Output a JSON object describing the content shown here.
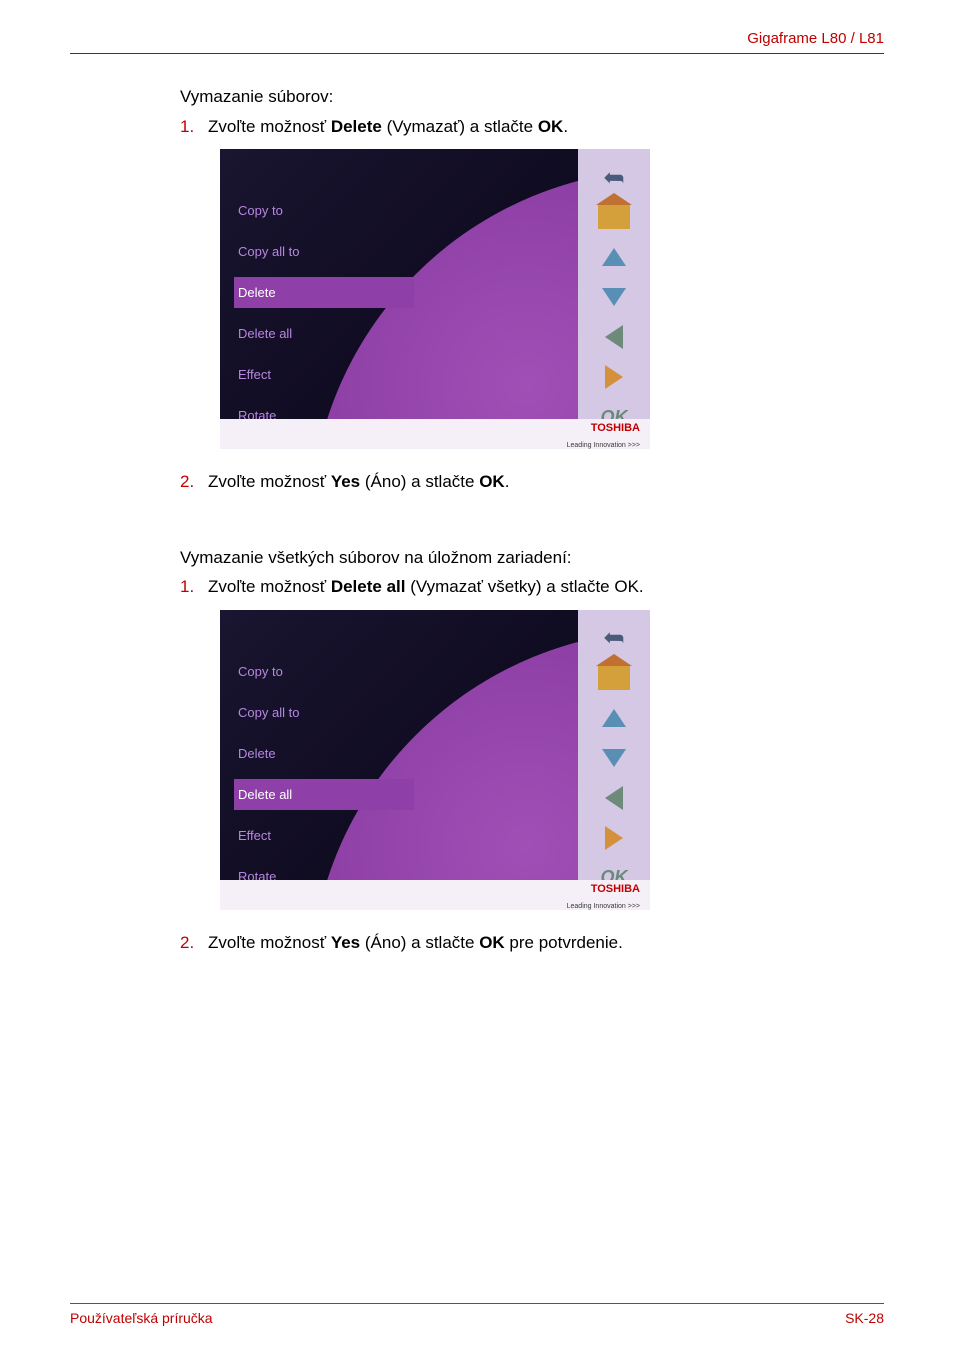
{
  "header": {
    "title": "Gigaframe L80 / L81"
  },
  "section1": {
    "heading": "Vymazanie súborov:",
    "step1_num": "1.",
    "step1_pre": "Zvoľte možnosť ",
    "step1_b1": "Delete",
    "step1_mid": " (Vymazať) a stlačte ",
    "step1_b2": "OK",
    "step1_post": ".",
    "step2_num": "2.",
    "step2_pre": "Zvoľte možnosť ",
    "step2_b1": "Yes",
    "step2_mid": " (Áno) a stlačte ",
    "step2_b2": "OK",
    "step2_post": "."
  },
  "section2": {
    "heading": "Vymazanie všetkých súborov na úložnom zariadení:",
    "step1_num": "1.",
    "step1_pre": "Zvoľte možnosť ",
    "step1_b1": "Delete all",
    "step1_mid": " (Vymazať všetky) a stlačte OK.",
    "step2_num": "2.",
    "step2_pre": "Zvoľte možnosť ",
    "step2_b1": "Yes",
    "step2_mid": " (Áno) a stlačte ",
    "step2_b2": "OK",
    "step2_post": " pre potvrdenie."
  },
  "menu": {
    "items": [
      "Copy to",
      "Copy all to",
      "Delete",
      "Delete all",
      "Effect",
      "Rotate"
    ],
    "selected_idx_shot1": 2,
    "selected_idx_shot2": 3,
    "brand_name": "TOSHIBA",
    "brand_tag": "Leading Innovation >>>",
    "ok_label": "OK",
    "colors": {
      "panel_bg": "#d4c8e4",
      "selected_bg": "#8e3fa8",
      "menu_text": "#b787e0",
      "arc_grad_a": "#a050b5",
      "arc_grad_b": "#7a2d94",
      "brand_color": "#c00000"
    }
  },
  "footer": {
    "left": "Používateľská príručka",
    "right": "SK-28"
  }
}
